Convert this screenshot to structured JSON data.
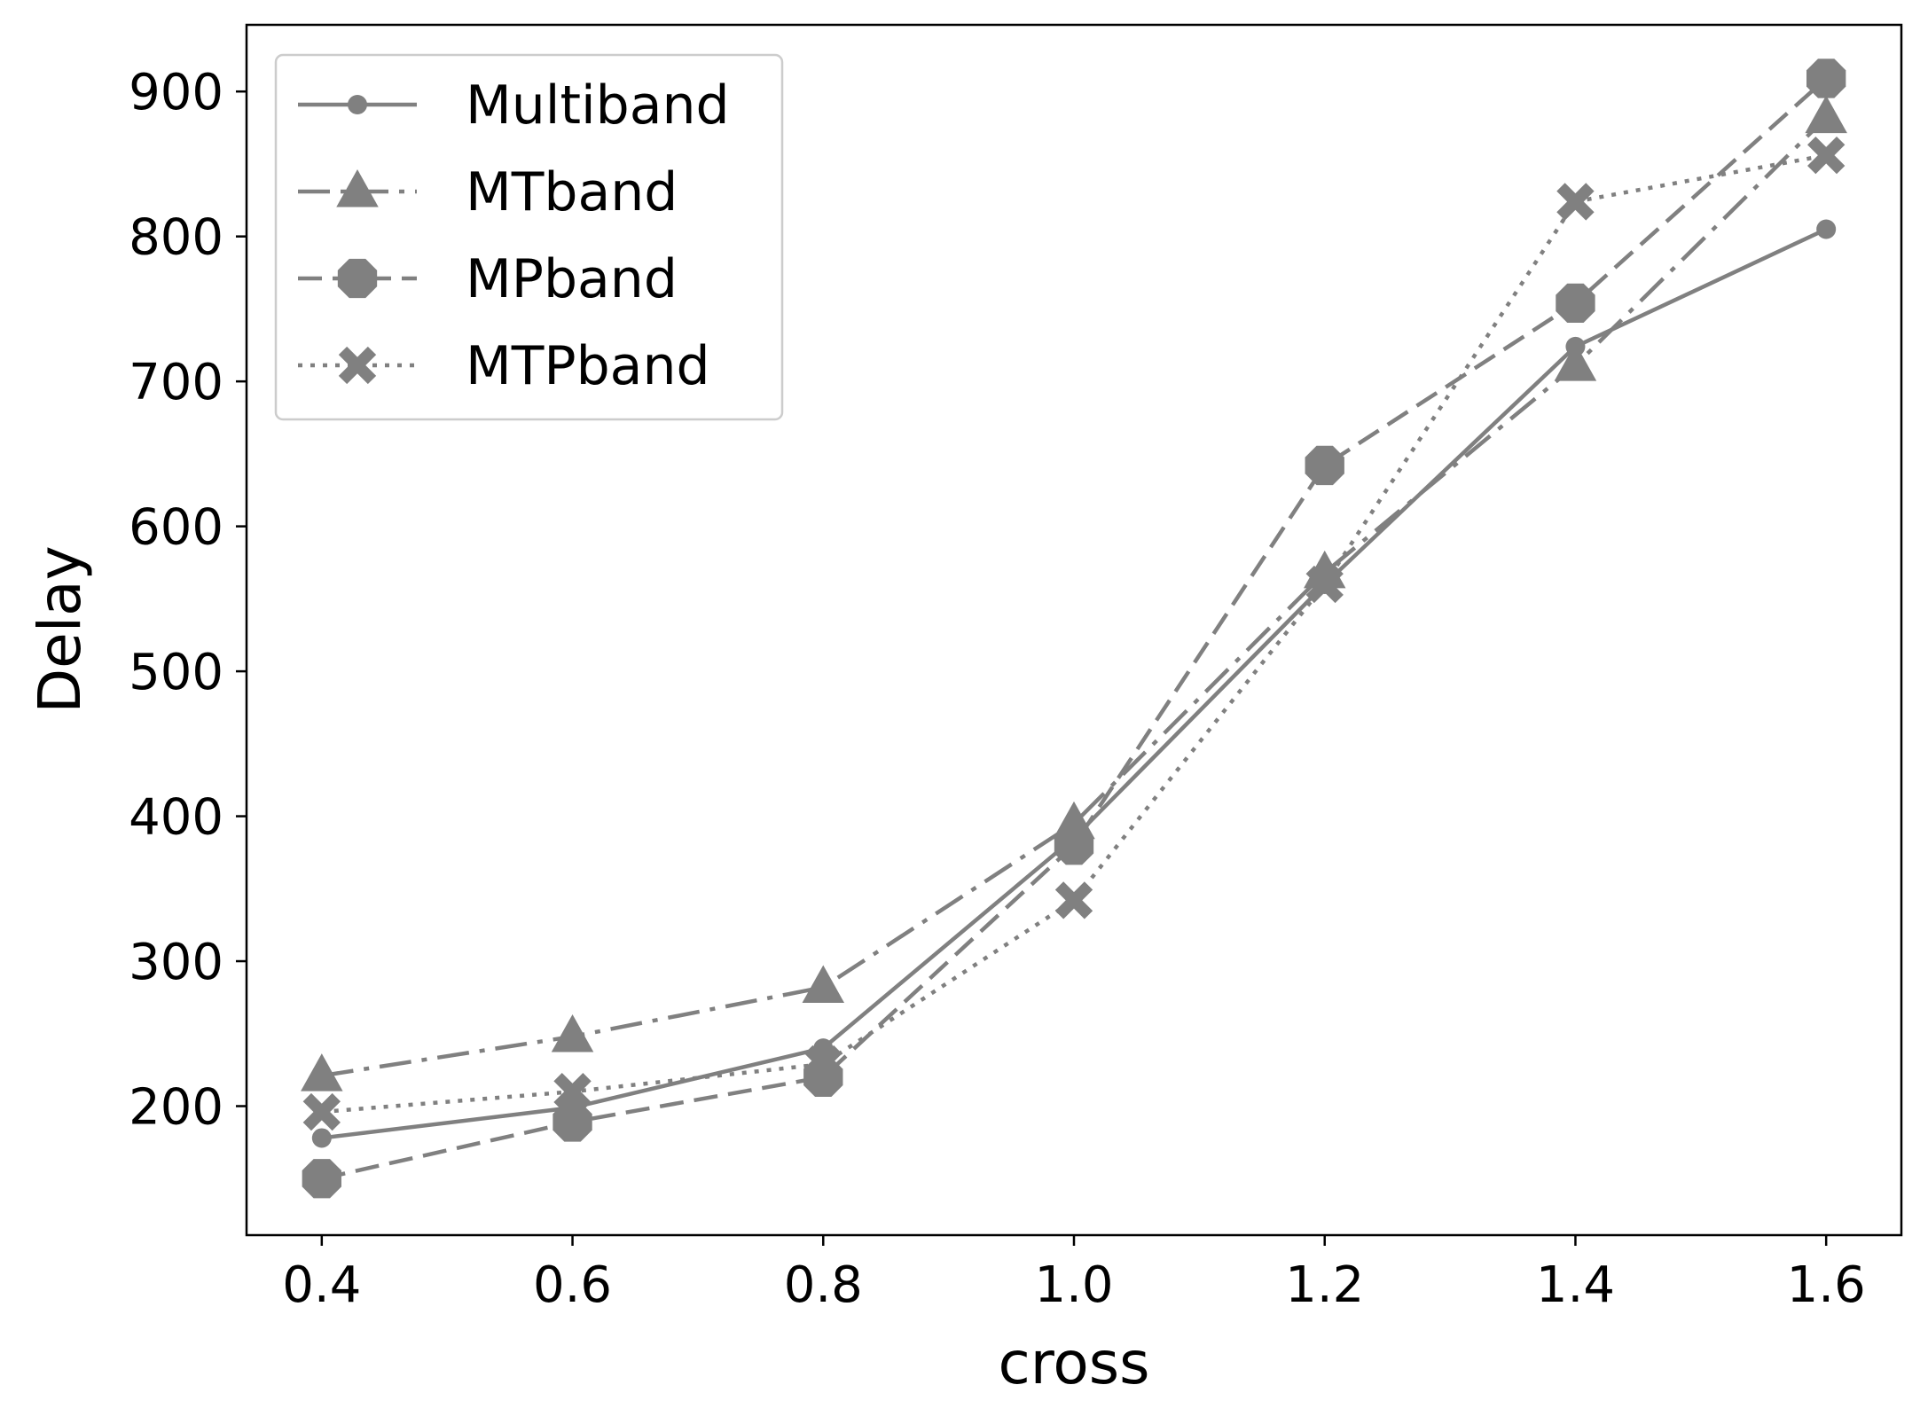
{
  "chart_data": {
    "type": "line",
    "title": "",
    "xlabel": "cross",
    "ylabel": "Delay",
    "x": [
      0.4,
      0.6,
      0.8,
      1.0,
      1.2,
      1.4,
      1.6
    ],
    "x_tick_labels": [
      "0.4",
      "0.6",
      "0.8",
      "1.0",
      "1.2",
      "1.4",
      "1.6"
    ],
    "y_ticks": [
      200,
      300,
      400,
      500,
      600,
      700,
      800,
      900
    ],
    "y_tick_labels": [
      "200",
      "300",
      "400",
      "500",
      "600",
      "700",
      "800",
      "900"
    ],
    "xlim": [
      0.34,
      1.66
    ],
    "ylim": [
      111,
      946
    ],
    "grid": false,
    "legend_position": "upper left",
    "series": [
      {
        "name": "Multiband",
        "marker": "circle",
        "line_style": "solid",
        "color": "#808080",
        "values": [
          178,
          199,
          240,
          385,
          560,
          724,
          805
        ]
      },
      {
        "name": "MTband",
        "marker": "triangle",
        "line_style": "dashdot",
        "color": "#808080",
        "values": [
          221,
          248,
          282,
          395,
          568,
          711,
          882
        ]
      },
      {
        "name": "MPband",
        "marker": "octagon",
        "line_style": "dashed",
        "color": "#808080",
        "values": [
          150,
          189,
          220,
          380,
          642,
          754,
          909
        ]
      },
      {
        "name": "MTPband",
        "marker": "x",
        "line_style": "dotted",
        "color": "#808080",
        "values": [
          196,
          210,
          229,
          342,
          560,
          824,
          856
        ]
      }
    ]
  }
}
